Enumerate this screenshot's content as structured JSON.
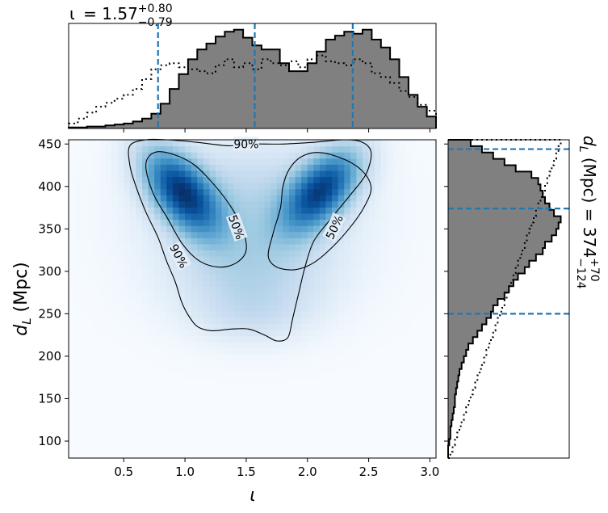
{
  "figure_title": {
    "iota": {
      "symbol": "ι",
      "value": "1.57",
      "plus": "+0.80",
      "minus": "−0.79"
    },
    "dl": {
      "symbol": "d",
      "sub": "L",
      "unit": "(Mpc)",
      "value": "374",
      "plus": "+70",
      "minus": "−124"
    }
  },
  "chart_data": [
    {
      "type": "heatmap",
      "title": "",
      "xlabel": "ι",
      "ylabel_symbol": "d",
      "ylabel_sub": "L",
      "ylabel_unit": "(Mpc)",
      "xlim": [
        0.05,
        3.05
      ],
      "ylim": [
        80,
        455
      ],
      "xticks": [
        "0.5",
        "1.0",
        "1.5",
        "2.0",
        "2.5",
        "3.0"
      ],
      "yticks": [
        "100",
        "150",
        "200",
        "250",
        "300",
        "350",
        "400",
        "450"
      ],
      "colormap": "Blues",
      "blobs": [
        {
          "x": 0.97,
          "y": 395,
          "sx": 0.22,
          "sy": 36,
          "rho": -0.55,
          "w": 1.0
        },
        {
          "x": 2.12,
          "y": 397,
          "sx": 0.22,
          "sy": 34,
          "rho": 0.55,
          "w": 0.95
        },
        {
          "x": 1.55,
          "y": 375,
          "sx": 0.55,
          "sy": 55,
          "rho": 0.0,
          "w": 0.3
        },
        {
          "x": 1.55,
          "y": 285,
          "sx": 0.45,
          "sy": 38,
          "rho": 0.0,
          "w": 0.22
        },
        {
          "x": 1.55,
          "y": 245,
          "sx": 0.3,
          "sy": 22,
          "rho": 0.0,
          "w": 0.1
        }
      ],
      "contours": [
        {
          "label": "90%",
          "labels_at": [
            {
              "x": 1.5,
              "y": 450
            },
            {
              "x": 0.95,
              "y": 318,
              "angle": 62
            }
          ],
          "points": [
            [
              0.55,
              448
            ],
            [
              0.68,
              455
            ],
            [
              0.85,
              455
            ],
            [
              1.1,
              452
            ],
            [
              1.35,
              448
            ],
            [
              1.55,
              450
            ],
            [
              1.8,
              450
            ],
            [
              2.05,
              452
            ],
            [
              2.3,
              455
            ],
            [
              2.45,
              452
            ],
            [
              2.52,
              440
            ],
            [
              2.48,
              415
            ],
            [
              2.35,
              390
            ],
            [
              2.18,
              360
            ],
            [
              2.05,
              335
            ],
            [
              1.98,
              305
            ],
            [
              1.93,
              275
            ],
            [
              1.88,
              245
            ],
            [
              1.84,
              222
            ],
            [
              1.75,
              218
            ],
            [
              1.65,
              225
            ],
            [
              1.52,
              232
            ],
            [
              1.38,
              232
            ],
            [
              1.22,
              230
            ],
            [
              1.1,
              235
            ],
            [
              1.02,
              250
            ],
            [
              0.97,
              265
            ],
            [
              0.92,
              288
            ],
            [
              0.85,
              312
            ],
            [
              0.78,
              340
            ],
            [
              0.68,
              370
            ],
            [
              0.6,
              400
            ],
            [
              0.55,
              425
            ]
          ]
        },
        {
          "label": "50%",
          "labels_at": [
            {
              "x": 1.42,
              "y": 352,
              "angle": 70
            }
          ],
          "points": [
            [
              0.68,
              425
            ],
            [
              0.75,
              440
            ],
            [
              0.9,
              438
            ],
            [
              1.08,
              425
            ],
            [
              1.25,
              400
            ],
            [
              1.38,
              375
            ],
            [
              1.47,
              350
            ],
            [
              1.5,
              325
            ],
            [
              1.42,
              310
            ],
            [
              1.28,
              305
            ],
            [
              1.12,
              312
            ],
            [
              0.98,
              332
            ],
            [
              0.86,
              362
            ],
            [
              0.74,
              392
            ]
          ]
        },
        {
          "label": "50%",
          "labels_at": [
            {
              "x": 2.22,
              "y": 352,
              "angle": -65
            }
          ],
          "points": [
            [
              1.85,
              420
            ],
            [
              1.95,
              435
            ],
            [
              2.1,
              440
            ],
            [
              2.3,
              432
            ],
            [
              2.45,
              418
            ],
            [
              2.52,
              398
            ],
            [
              2.46,
              375
            ],
            [
              2.35,
              352
            ],
            [
              2.2,
              328
            ],
            [
              2.05,
              310
            ],
            [
              1.9,
              302
            ],
            [
              1.75,
              305
            ],
            [
              1.68,
              318
            ],
            [
              1.72,
              345
            ],
            [
              1.78,
              375
            ],
            [
              1.8,
              400
            ]
          ]
        }
      ]
    },
    {
      "type": "histogram",
      "parameter": "ι",
      "x_start": 0.05,
      "bin_width": 0.075,
      "xlim": [
        0.05,
        3.05
      ],
      "series": [
        {
          "name": "",
          "style": "filled",
          "values": [
            0.01,
            0.01,
            0.02,
            0.02,
            0.03,
            0.04,
            0.05,
            0.07,
            0.1,
            0.15,
            0.25,
            0.4,
            0.55,
            0.7,
            0.8,
            0.86,
            0.93,
            0.98,
            1.0,
            0.92,
            0.84,
            0.8,
            0.8,
            0.66,
            0.58,
            0.58,
            0.66,
            0.78,
            0.9,
            0.94,
            0.98,
            0.96,
            1.0,
            0.9,
            0.82,
            0.7,
            0.52,
            0.34,
            0.22,
            0.12
          ]
        },
        {
          "name": "",
          "style": "dotted",
          "values": [
            0.05,
            0.1,
            0.16,
            0.22,
            0.26,
            0.3,
            0.34,
            0.4,
            0.5,
            0.6,
            0.64,
            0.66,
            0.62,
            0.6,
            0.58,
            0.56,
            0.64,
            0.7,
            0.62,
            0.66,
            0.6,
            0.7,
            0.66,
            0.64,
            0.68,
            0.62,
            0.7,
            0.74,
            0.68,
            0.66,
            0.64,
            0.7,
            0.66,
            0.56,
            0.52,
            0.46,
            0.38,
            0.32,
            0.24,
            0.18
          ]
        }
      ],
      "quantiles": [
        0.78,
        1.57,
        2.37
      ]
    },
    {
      "type": "histogram",
      "orientation": "horizontal",
      "parameter": "d_L",
      "y_start": 80,
      "bin_width": 7.5,
      "ylim": [
        80,
        455
      ],
      "series": [
        {
          "name": "",
          "style": "filled",
          "values": [
            0.0,
            0.0,
            0.01,
            0.02,
            0.02,
            0.03,
            0.04,
            0.05,
            0.06,
            0.06,
            0.07,
            0.08,
            0.09,
            0.1,
            0.12,
            0.14,
            0.16,
            0.18,
            0.22,
            0.26,
            0.3,
            0.34,
            0.38,
            0.4,
            0.44,
            0.5,
            0.54,
            0.58,
            0.62,
            0.68,
            0.72,
            0.78,
            0.84,
            0.86,
            0.92,
            0.96,
            0.98,
            1.0,
            0.94,
            0.9,
            0.86,
            0.84,
            0.82,
            0.8,
            0.74,
            0.6,
            0.5,
            0.4,
            0.3,
            0.2
          ]
        },
        {
          "name": "",
          "style": "dotted",
          "values": [
            0.02,
            0.04,
            0.06,
            0.08,
            0.1,
            0.12,
            0.14,
            0.16,
            0.18,
            0.2,
            0.22,
            0.24,
            0.26,
            0.28,
            0.3,
            0.32,
            0.34,
            0.36,
            0.38,
            0.4,
            0.42,
            0.44,
            0.46,
            0.48,
            0.5,
            0.52,
            0.54,
            0.56,
            0.58,
            0.6,
            0.62,
            0.64,
            0.66,
            0.68,
            0.7,
            0.72,
            0.74,
            0.76,
            0.78,
            0.8,
            0.82,
            0.84,
            0.86,
            0.88,
            0.9,
            0.92,
            0.94,
            0.96,
            0.98,
            1.0
          ]
        }
      ],
      "quantiles": [
        250,
        374,
        444
      ]
    }
  ],
  "colors": {
    "hist_fill": "#808080",
    "hist_edge": "#000000",
    "quantile_line": "#1f77b4"
  }
}
